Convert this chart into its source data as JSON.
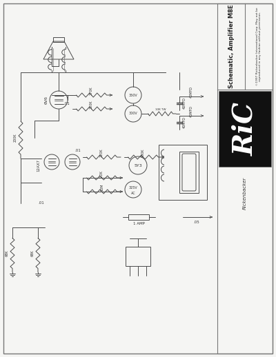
{
  "title": "Schematic, Amplifier M8E",
  "copyright_text": "©1997 Rickenbacker International Corp. May not be\nreproduced in any fashion without permission.",
  "brand": "Rickenbacker",
  "bg_color": "#f5f5f3",
  "line_color": "#4a4a4a",
  "border_color": "#777777",
  "fig_width": 4.0,
  "fig_height": 5.18,
  "dpi": 100
}
